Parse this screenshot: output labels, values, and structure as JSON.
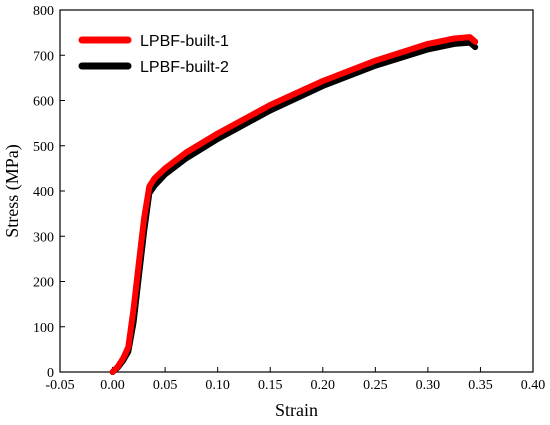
{
  "chart_data": {
    "type": "line",
    "title": "",
    "xlabel": "Strain",
    "ylabel": "Stress (MPa)",
    "xlim": [
      -0.05,
      0.4
    ],
    "ylim": [
      0,
      800
    ],
    "xticks": [
      -0.05,
      0.0,
      0.05,
      0.1,
      0.15,
      0.2,
      0.25,
      0.3,
      0.35,
      0.4
    ],
    "xtick_labels": [
      "-0.05",
      "0.00",
      "0.05",
      "0.10",
      "0.15",
      "0.20",
      "0.25",
      "0.30",
      "0.35",
      "0.40"
    ],
    "yticks": [
      0,
      100,
      200,
      300,
      400,
      500,
      600,
      700,
      800
    ],
    "ytick_labels": [
      "0",
      "100",
      "200",
      "300",
      "400",
      "500",
      "600",
      "700",
      "800"
    ],
    "grid": false,
    "legend_position": "top-left",
    "series": [
      {
        "name": "LPBF-built-1",
        "color": "#ff0000",
        "x": [
          0.0,
          0.005,
          0.01,
          0.015,
          0.02,
          0.025,
          0.03,
          0.035,
          0.04,
          0.05,
          0.07,
          0.1,
          0.15,
          0.2,
          0.25,
          0.3,
          0.325,
          0.34,
          0.345
        ],
        "y": [
          0,
          12,
          30,
          55,
          140,
          240,
          340,
          410,
          428,
          450,
          485,
          527,
          590,
          643,
          688,
          725,
          737,
          740,
          730
        ]
      },
      {
        "name": "LPBF-built-2",
        "color": "#000000",
        "x": [
          0.0,
          0.005,
          0.01,
          0.015,
          0.02,
          0.025,
          0.03,
          0.035,
          0.04,
          0.05,
          0.07,
          0.1,
          0.15,
          0.2,
          0.25,
          0.3,
          0.325,
          0.34,
          0.345
        ],
        "y": [
          0,
          10,
          25,
          45,
          110,
          210,
          310,
          395,
          412,
          437,
          472,
          515,
          578,
          632,
          677,
          713,
          725,
          728,
          718
        ]
      }
    ]
  }
}
